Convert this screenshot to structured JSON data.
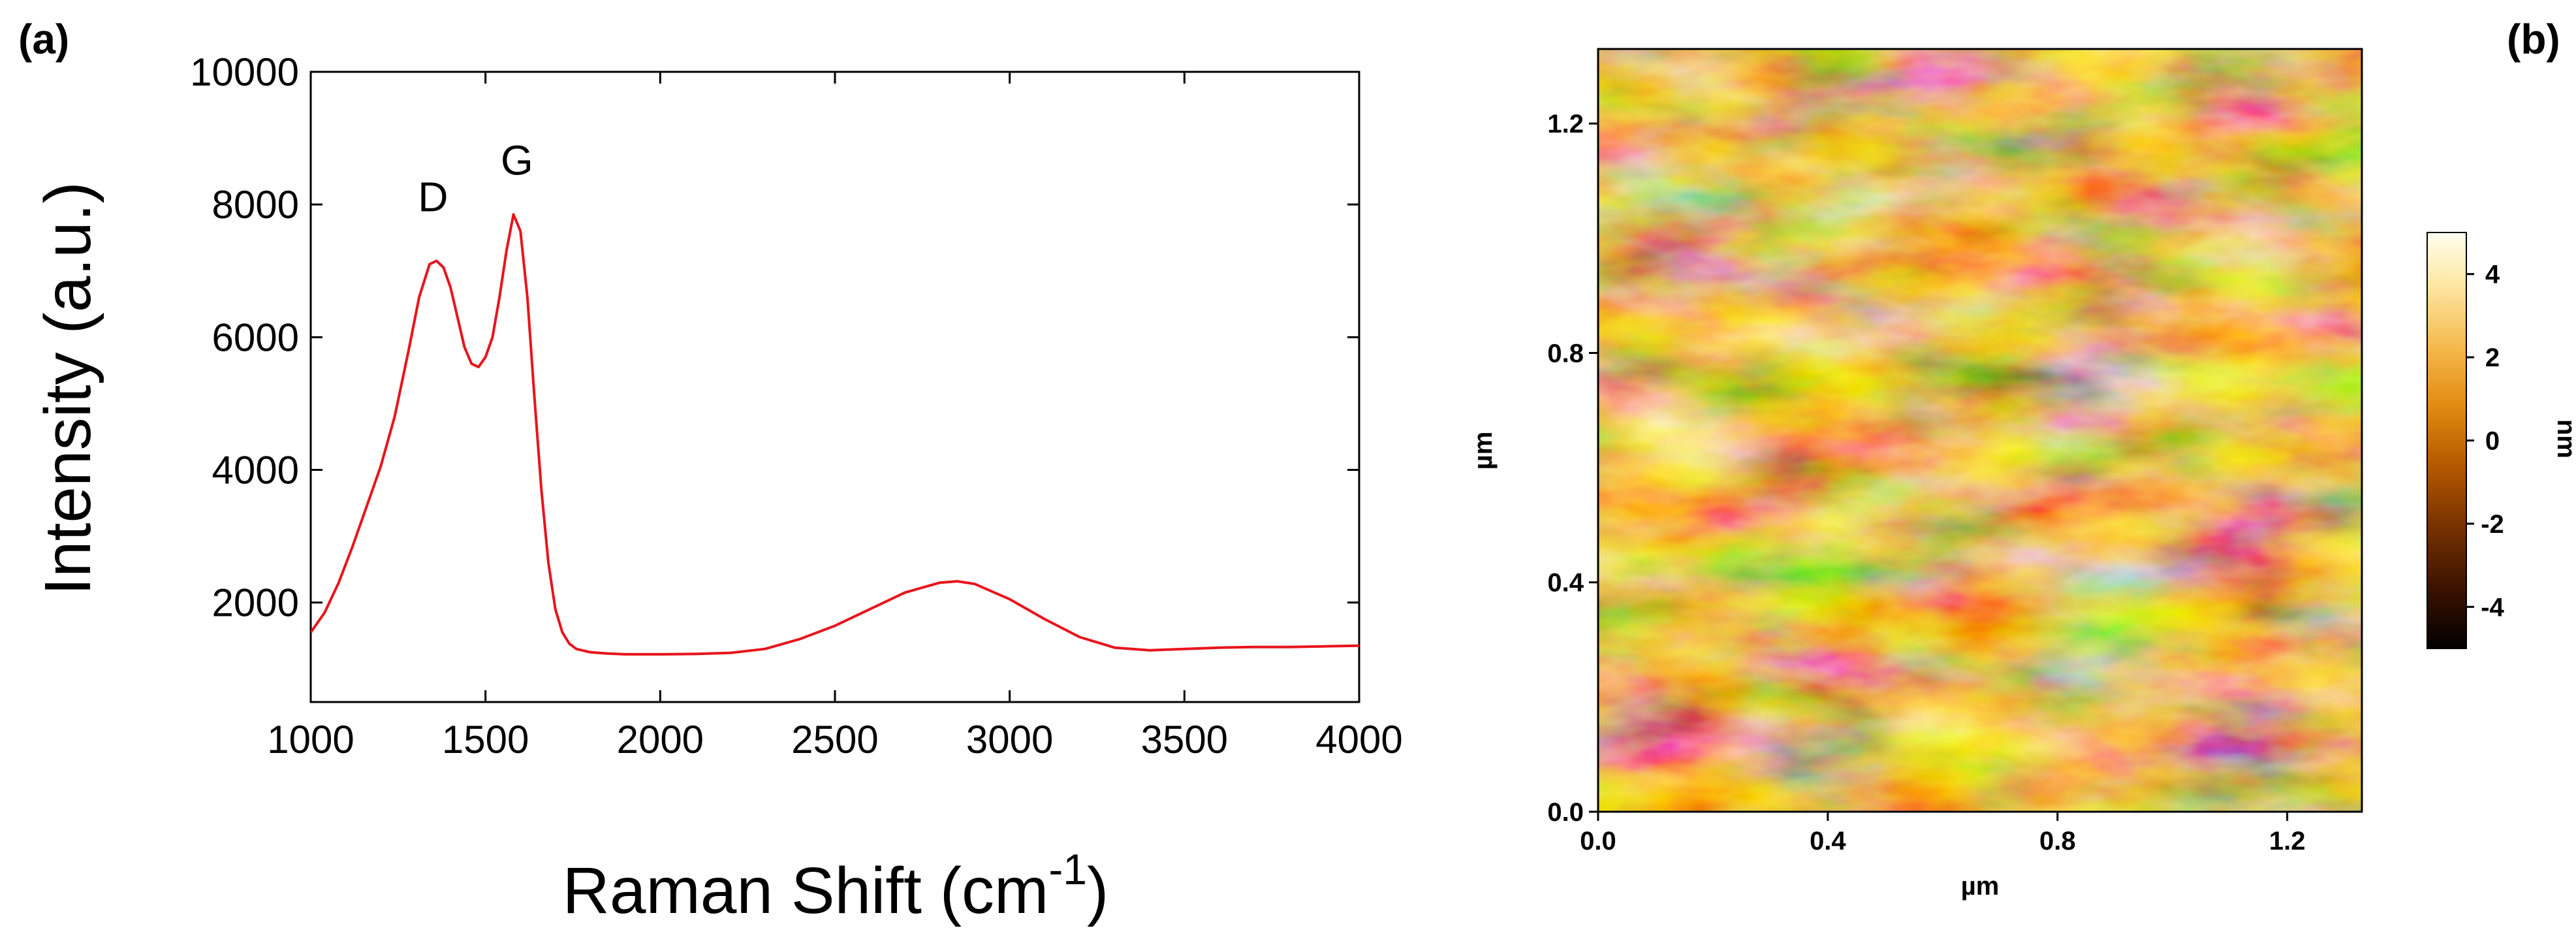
{
  "colors": {
    "raman_line": "#e8141c",
    "axis": "#000000",
    "colormap": [
      "#000000",
      "#3a1200",
      "#7a3300",
      "#b85c00",
      "#e08a10",
      "#f5b84a",
      "#fde9a6",
      "#fffff0"
    ]
  },
  "chart_data": [
    {
      "panel_label": "(a)",
      "type": "line",
      "xlabel": "Raman Shift (cm",
      "xlabel_sup": "-1",
      "xlabel_close": ")",
      "ylabel": "Intensity (a.u.)",
      "xlim": [
        1000,
        4000
      ],
      "ylim": [
        500,
        10000
      ],
      "xticks": [
        1000,
        1500,
        2000,
        2500,
        3000,
        3500,
        4000
      ],
      "yticks": [
        2000,
        4000,
        6000,
        8000,
        10000
      ],
      "grid": false,
      "annotations": [
        {
          "text": "D",
          "x": 1350,
          "y": 7900
        },
        {
          "text": "G",
          "x": 1590,
          "y": 8450
        }
      ],
      "series": [
        {
          "color": "#e8141c",
          "x": [
            1000,
            1040,
            1080,
            1120,
            1160,
            1200,
            1240,
            1280,
            1310,
            1340,
            1360,
            1380,
            1400,
            1420,
            1440,
            1460,
            1480,
            1500,
            1520,
            1540,
            1560,
            1580,
            1600,
            1620,
            1640,
            1660,
            1680,
            1700,
            1720,
            1740,
            1760,
            1800,
            1850,
            1900,
            1950,
            2000,
            2100,
            2200,
            2300,
            2400,
            2500,
            2600,
            2700,
            2800,
            2850,
            2900,
            3000,
            3100,
            3200,
            3300,
            3400,
            3500,
            3600,
            3700,
            3800,
            3900,
            4000
          ],
          "y": [
            1550,
            1850,
            2300,
            2850,
            3450,
            4050,
            4800,
            5800,
            6600,
            7100,
            7150,
            7050,
            6750,
            6300,
            5850,
            5600,
            5550,
            5700,
            6000,
            6600,
            7300,
            7850,
            7600,
            6600,
            5100,
            3700,
            2600,
            1900,
            1550,
            1380,
            1300,
            1250,
            1230,
            1220,
            1220,
            1220,
            1225,
            1240,
            1300,
            1450,
            1650,
            1900,
            2150,
            2300,
            2320,
            2280,
            2050,
            1750,
            1480,
            1320,
            1280,
            1300,
            1320,
            1330,
            1330,
            1340,
            1350
          ]
        }
      ]
    },
    {
      "panel_label": "(b)",
      "type": "heatmap",
      "xlabel": "µm",
      "ylabel": "µm",
      "xticks": [
        "0.0",
        "0.4",
        "0.8",
        "1.2"
      ],
      "yticks": [
        "0.0",
        "0.4",
        "0.8",
        "1.2"
      ],
      "xlim": [
        0,
        1.33
      ],
      "ylim": [
        0,
        1.33
      ],
      "colorbar": {
        "label": "nm",
        "ticks": [
          "4",
          "2",
          "0",
          "-2",
          "-4"
        ],
        "range": [
          -5,
          5
        ]
      }
    }
  ]
}
